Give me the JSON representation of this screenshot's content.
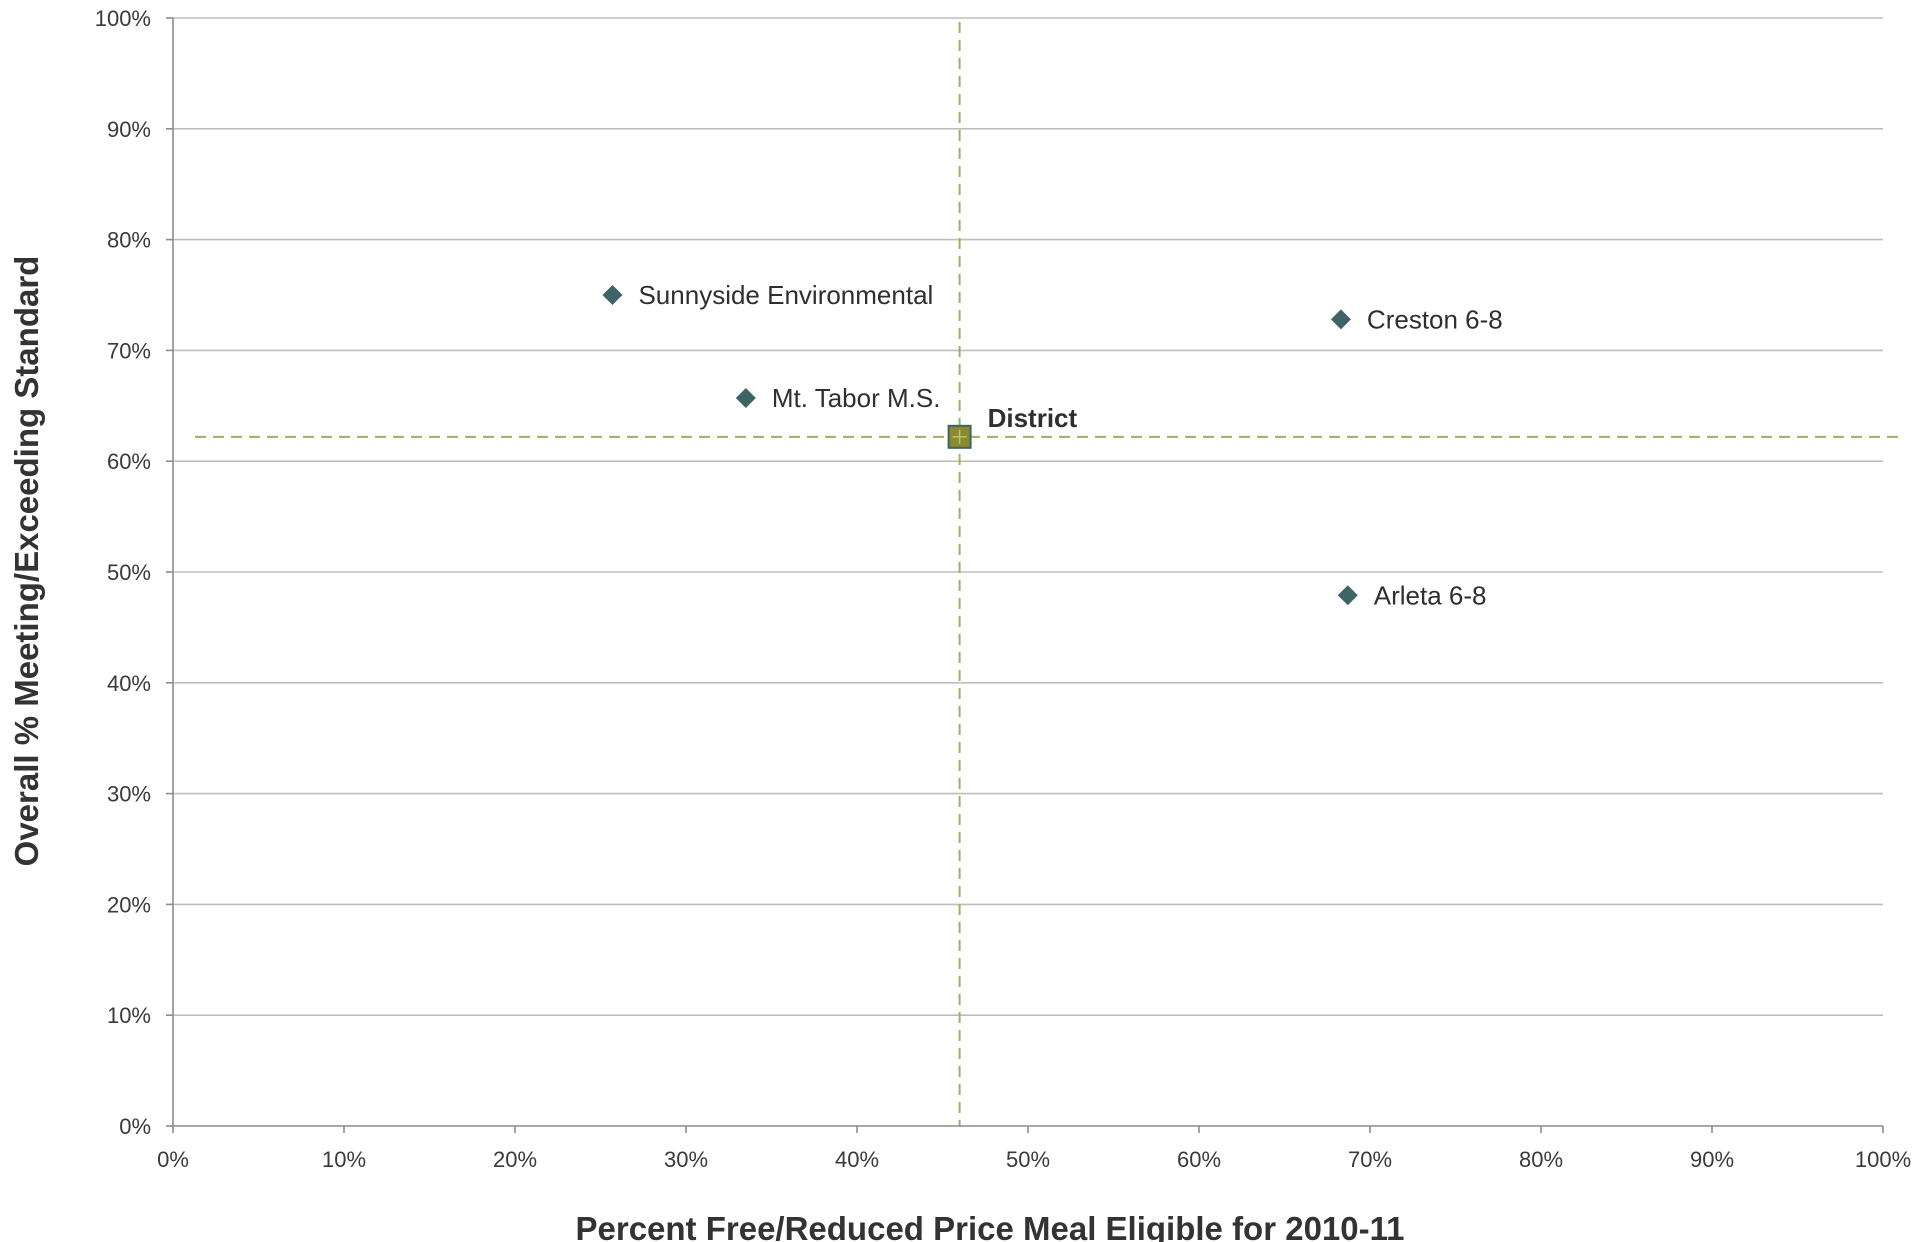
{
  "chart_data": {
    "type": "scatter",
    "title": "",
    "xlabel": "Percent Free/Reduced Price Meal Eligible for 2010-11",
    "ylabel": "Overall % Meeting/Exceeding Standard",
    "xlim": [
      0,
      100
    ],
    "ylim": [
      0,
      100
    ],
    "x_ticks": [
      "0%",
      "10%",
      "20%",
      "30%",
      "40%",
      "50%",
      "60%",
      "70%",
      "80%",
      "90%",
      "100%"
    ],
    "y_ticks": [
      "0%",
      "10%",
      "20%",
      "30%",
      "40%",
      "50%",
      "60%",
      "70%",
      "80%",
      "90%",
      "100%"
    ],
    "grid": "horizontal",
    "legend": "none",
    "series": [
      {
        "marker": "diamond",
        "color": "#3f6468",
        "points": [
          {
            "label": "Sunnyside Environmental",
            "x": 25.7,
            "y": 75.0
          },
          {
            "label": "Creston 6-8",
            "x": 68.3,
            "y": 72.8
          },
          {
            "label": "Mt. Tabor M.S.",
            "x": 33.5,
            "y": 65.7
          },
          {
            "label": "Arleta 6-8",
            "x": 68.7,
            "y": 47.9
          }
        ]
      },
      {
        "marker": "square",
        "color": "#8b8a2e",
        "points": [
          {
            "label": "District",
            "x": 46.0,
            "y": 62.2
          }
        ]
      }
    ],
    "reference_lines": {
      "x": 46.0,
      "y": 62.2,
      "style": "dashed",
      "color": "#9bb06a"
    }
  }
}
